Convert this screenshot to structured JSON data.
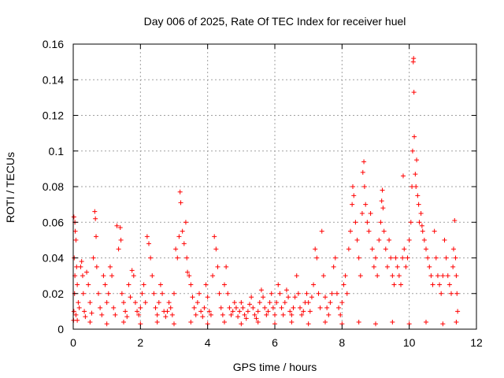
{
  "chart_data": {
    "type": "scatter",
    "title": "Day 006 of 2025, Rate Of TEC Index for receiver huel",
    "xlabel": "GPS time / hours",
    "ylabel": "ROTI / TECUs",
    "xlim": [
      0,
      12
    ],
    "ylim": [
      0,
      0.16
    ],
    "xticks": [
      0,
      2,
      4,
      6,
      8,
      10,
      12
    ],
    "xtick_labels": [
      "0",
      "2",
      "4",
      "6",
      "8",
      "10",
      "12"
    ],
    "yticks": [
      0,
      0.02,
      0.04,
      0.06,
      0.08,
      0.1,
      0.12,
      0.14,
      0.16
    ],
    "ytick_labels": [
      "0",
      "0.02",
      "0.04",
      "0.06",
      "0.08",
      "0.1",
      "0.12",
      "0.14",
      "0.16"
    ],
    "grid": true,
    "marker": "+",
    "color": "#ff0000",
    "series": [
      {
        "name": "ROTI",
        "points": [
          [
            0.02,
            0.063
          ],
          [
            0.05,
            0.06
          ],
          [
            0.06,
            0.055
          ],
          [
            0.08,
            0.05
          ],
          [
            0.03,
            0.04
          ],
          [
            0.1,
            0.035
          ],
          [
            0.05,
            0.03
          ],
          [
            0.12,
            0.025
          ],
          [
            0.04,
            0.02
          ],
          [
            0.15,
            0.015
          ],
          [
            0.02,
            0.01
          ],
          [
            0.08,
            0.008
          ],
          [
            0.12,
            0.005
          ],
          [
            0.18,
            0.012
          ],
          [
            0.22,
            0.035
          ],
          [
            0.25,
            0.038
          ],
          [
            0.28,
            0.03
          ],
          [
            0.3,
            0.02
          ],
          [
            0.33,
            0.01
          ],
          [
            0.36,
            0.007
          ],
          [
            0.4,
            0.032
          ],
          [
            0.45,
            0.025
          ],
          [
            0.5,
            0.015
          ],
          [
            0.55,
            0.009
          ],
          [
            0.6,
            0.04
          ],
          [
            0.64,
            0.066
          ],
          [
            0.66,
            0.062
          ],
          [
            0.68,
            0.052
          ],
          [
            0.7,
            0.035
          ],
          [
            0.75,
            0.02
          ],
          [
            0.8,
            0.012
          ],
          [
            0.85,
            0.008
          ],
          [
            0.9,
            0.03
          ],
          [
            0.95,
            0.025
          ],
          [
            1.0,
            0.015
          ],
          [
            1.05,
            0.02
          ],
          [
            1.1,
            0.035
          ],
          [
            1.15,
            0.03
          ],
          [
            1.2,
            0.012
          ],
          [
            1.25,
            0.008
          ],
          [
            1.3,
            0.058
          ],
          [
            1.35,
            0.045
          ],
          [
            1.4,
            0.057
          ],
          [
            1.42,
            0.05
          ],
          [
            1.45,
            0.02
          ],
          [
            1.5,
            0.015
          ],
          [
            1.55,
            0.01
          ],
          [
            1.6,
            0.007
          ],
          [
            1.65,
            0.025
          ],
          [
            1.7,
            0.018
          ],
          [
            1.75,
            0.033
          ],
          [
            1.8,
            0.03
          ],
          [
            1.85,
            0.015
          ],
          [
            1.9,
            0.01
          ],
          [
            1.95,
            0.008
          ],
          [
            2.0,
            0.012
          ],
          [
            2.05,
            0.02
          ],
          [
            2.1,
            0.025
          ],
          [
            2.15,
            0.015
          ],
          [
            2.2,
            0.052
          ],
          [
            2.25,
            0.048
          ],
          [
            2.3,
            0.04
          ],
          [
            2.35,
            0.03
          ],
          [
            2.4,
            0.02
          ],
          [
            2.45,
            0.012
          ],
          [
            2.5,
            0.008
          ],
          [
            2.55,
            0.015
          ],
          [
            2.6,
            0.025
          ],
          [
            2.65,
            0.02
          ],
          [
            2.7,
            0.01
          ],
          [
            2.75,
            0.007
          ],
          [
            2.8,
            0.01
          ],
          [
            2.85,
            0.015
          ],
          [
            2.9,
            0.012
          ],
          [
            2.95,
            0.008
          ],
          [
            3.0,
            0.02
          ],
          [
            3.05,
            0.045
          ],
          [
            3.1,
            0.04
          ],
          [
            3.15,
            0.052
          ],
          [
            3.18,
            0.077
          ],
          [
            3.2,
            0.071
          ],
          [
            3.25,
            0.055
          ],
          [
            3.3,
            0.048
          ],
          [
            3.35,
            0.06
          ],
          [
            3.38,
            0.04
          ],
          [
            3.4,
            0.032
          ],
          [
            3.45,
            0.03
          ],
          [
            3.5,
            0.025
          ],
          [
            3.55,
            0.018
          ],
          [
            3.6,
            0.012
          ],
          [
            3.65,
            0.008
          ],
          [
            3.7,
            0.015
          ],
          [
            3.75,
            0.02
          ],
          [
            3.8,
            0.01
          ],
          [
            3.85,
            0.007
          ],
          [
            3.9,
            0.012
          ],
          [
            3.95,
            0.025
          ],
          [
            4.0,
            0.018
          ],
          [
            4.05,
            0.01
          ],
          [
            4.1,
            0.008
          ],
          [
            4.15,
            0.03
          ],
          [
            4.2,
            0.052
          ],
          [
            4.25,
            0.045
          ],
          [
            4.3,
            0.035
          ],
          [
            4.35,
            0.02
          ],
          [
            4.4,
            0.012
          ],
          [
            4.45,
            0.008
          ],
          [
            4.5,
            0.025
          ],
          [
            4.55,
            0.035
          ],
          [
            4.6,
            0.02
          ],
          [
            4.65,
            0.012
          ],
          [
            4.7,
            0.008
          ],
          [
            4.75,
            0.01
          ],
          [
            4.8,
            0.015
          ],
          [
            4.85,
            0.012
          ],
          [
            4.9,
            0.007
          ],
          [
            4.95,
            0.01
          ],
          [
            5.0,
            0.015
          ],
          [
            5.05,
            0.012
          ],
          [
            5.1,
            0.008
          ],
          [
            5.15,
            0.006
          ],
          [
            5.2,
            0.01
          ],
          [
            5.25,
            0.014
          ],
          [
            5.3,
            0.018
          ],
          [
            5.35,
            0.012
          ],
          [
            5.4,
            0.008
          ],
          [
            5.45,
            0.006
          ],
          [
            5.5,
            0.01
          ],
          [
            5.55,
            0.015
          ],
          [
            5.6,
            0.022
          ],
          [
            5.65,
            0.018
          ],
          [
            5.7,
            0.012
          ],
          [
            5.75,
            0.008
          ],
          [
            5.8,
            0.01
          ],
          [
            5.85,
            0.015
          ],
          [
            5.9,
            0.02
          ],
          [
            5.95,
            0.012
          ],
          [
            6.0,
            0.008
          ],
          [
            6.05,
            0.015
          ],
          [
            6.1,
            0.025
          ],
          [
            6.15,
            0.02
          ],
          [
            6.2,
            0.012
          ],
          [
            6.25,
            0.008
          ],
          [
            6.3,
            0.015
          ],
          [
            6.35,
            0.022
          ],
          [
            6.4,
            0.018
          ],
          [
            6.45,
            0.01
          ],
          [
            6.5,
            0.008
          ],
          [
            6.55,
            0.012
          ],
          [
            6.6,
            0.018
          ],
          [
            6.65,
            0.03
          ],
          [
            6.7,
            0.02
          ],
          [
            6.75,
            0.012
          ],
          [
            6.8,
            0.008
          ],
          [
            6.85,
            0.01
          ],
          [
            6.9,
            0.015
          ],
          [
            6.95,
            0.02
          ],
          [
            7.0,
            0.015
          ],
          [
            7.05,
            0.01
          ],
          [
            7.1,
            0.018
          ],
          [
            7.15,
            0.025
          ],
          [
            7.2,
            0.045
          ],
          [
            7.25,
            0.04
          ],
          [
            7.3,
            0.02
          ],
          [
            7.35,
            0.012
          ],
          [
            7.4,
            0.055
          ],
          [
            7.45,
            0.03
          ],
          [
            7.5,
            0.018
          ],
          [
            7.55,
            0.012
          ],
          [
            7.6,
            0.008
          ],
          [
            7.65,
            0.015
          ],
          [
            7.7,
            0.02
          ],
          [
            7.75,
            0.035
          ],
          [
            7.8,
            0.04
          ],
          [
            7.85,
            0.02
          ],
          [
            7.9,
            0.012
          ],
          [
            7.95,
            0.008
          ],
          [
            8.0,
            0.015
          ],
          [
            8.05,
            0.025
          ],
          [
            8.1,
            0.03
          ],
          [
            8.15,
            0.02
          ],
          [
            8.2,
            0.045
          ],
          [
            8.25,
            0.055
          ],
          [
            8.3,
            0.07
          ],
          [
            8.32,
            0.08
          ],
          [
            8.35,
            0.075
          ],
          [
            8.4,
            0.06
          ],
          [
            8.45,
            0.05
          ],
          [
            8.5,
            0.04
          ],
          [
            8.55,
            0.03
          ],
          [
            8.6,
            0.065
          ],
          [
            8.62,
            0.088
          ],
          [
            8.65,
            0.094
          ],
          [
            8.67,
            0.08
          ],
          [
            8.7,
            0.07
          ],
          [
            8.75,
            0.06
          ],
          [
            8.8,
            0.055
          ],
          [
            8.85,
            0.065
          ],
          [
            8.9,
            0.045
          ],
          [
            8.95,
            0.035
          ],
          [
            9.0,
            0.04
          ],
          [
            9.05,
            0.03
          ],
          [
            9.1,
            0.05
          ],
          [
            9.15,
            0.06
          ],
          [
            9.18,
            0.072
          ],
          [
            9.2,
            0.078
          ],
          [
            9.22,
            0.068
          ],
          [
            9.25,
            0.055
          ],
          [
            9.3,
            0.045
          ],
          [
            9.35,
            0.035
          ],
          [
            9.4,
            0.05
          ],
          [
            9.45,
            0.04
          ],
          [
            9.5,
            0.03
          ],
          [
            9.55,
            0.025
          ],
          [
            9.6,
            0.04
          ],
          [
            9.65,
            0.035
          ],
          [
            9.7,
            0.03
          ],
          [
            9.75,
            0.025
          ],
          [
            9.8,
            0.04
          ],
          [
            9.82,
            0.086
          ],
          [
            9.85,
            0.045
          ],
          [
            9.9,
            0.035
          ],
          [
            9.95,
            0.04
          ],
          [
            10.0,
            0.05
          ],
          [
            10.05,
            0.06
          ],
          [
            10.08,
            0.08
          ],
          [
            10.1,
            0.1
          ],
          [
            10.12,
            0.15
          ],
          [
            10.13,
            0.152
          ],
          [
            10.14,
            0.133
          ],
          [
            10.15,
            0.108
          ],
          [
            10.18,
            0.087
          ],
          [
            10.2,
            0.08
          ],
          [
            10.22,
            0.095
          ],
          [
            10.25,
            0.075
          ],
          [
            10.28,
            0.07
          ],
          [
            10.3,
            0.06
          ],
          [
            10.35,
            0.065
          ],
          [
            10.38,
            0.058
          ],
          [
            10.4,
            0.055
          ],
          [
            10.45,
            0.05
          ],
          [
            10.5,
            0.045
          ],
          [
            10.55,
            0.04
          ],
          [
            10.6,
            0.035
          ],
          [
            10.65,
            0.03
          ],
          [
            10.7,
            0.025
          ],
          [
            10.75,
            0.055
          ],
          [
            10.8,
            0.04
          ],
          [
            10.85,
            0.03
          ],
          [
            10.9,
            0.025
          ],
          [
            10.95,
            0.02
          ],
          [
            11.0,
            0.03
          ],
          [
            11.05,
            0.05
          ],
          [
            11.1,
            0.04
          ],
          [
            11.15,
            0.03
          ],
          [
            11.2,
            0.025
          ],
          [
            11.25,
            0.02
          ],
          [
            11.3,
            0.035
          ],
          [
            11.32,
            0.045
          ],
          [
            11.35,
            0.061
          ],
          [
            11.38,
            0.04
          ],
          [
            11.4,
            0.03
          ],
          [
            11.42,
            0.02
          ],
          [
            11.44,
            0.01
          ],
          [
            0.01,
            0.005
          ],
          [
            0.5,
            0.004
          ],
          [
            1.0,
            0.003
          ],
          [
            1.5,
            0.004
          ],
          [
            2.0,
            0.003
          ],
          [
            2.5,
            0.004
          ],
          [
            3.0,
            0.003
          ],
          [
            3.5,
            0.004
          ],
          [
            4.0,
            0.003
          ],
          [
            4.5,
            0.004
          ],
          [
            5.0,
            0.003
          ],
          [
            5.5,
            0.004
          ],
          [
            6.0,
            0.003
          ],
          [
            6.5,
            0.004
          ],
          [
            7.0,
            0.003
          ],
          [
            7.5,
            0.004
          ],
          [
            8.0,
            0.003
          ],
          [
            8.5,
            0.004
          ],
          [
            9.0,
            0.003
          ],
          [
            9.5,
            0.004
          ],
          [
            10.0,
            0.003
          ],
          [
            10.5,
            0.004
          ],
          [
            11.0,
            0.003
          ],
          [
            11.4,
            0.004
          ]
        ]
      }
    ]
  }
}
